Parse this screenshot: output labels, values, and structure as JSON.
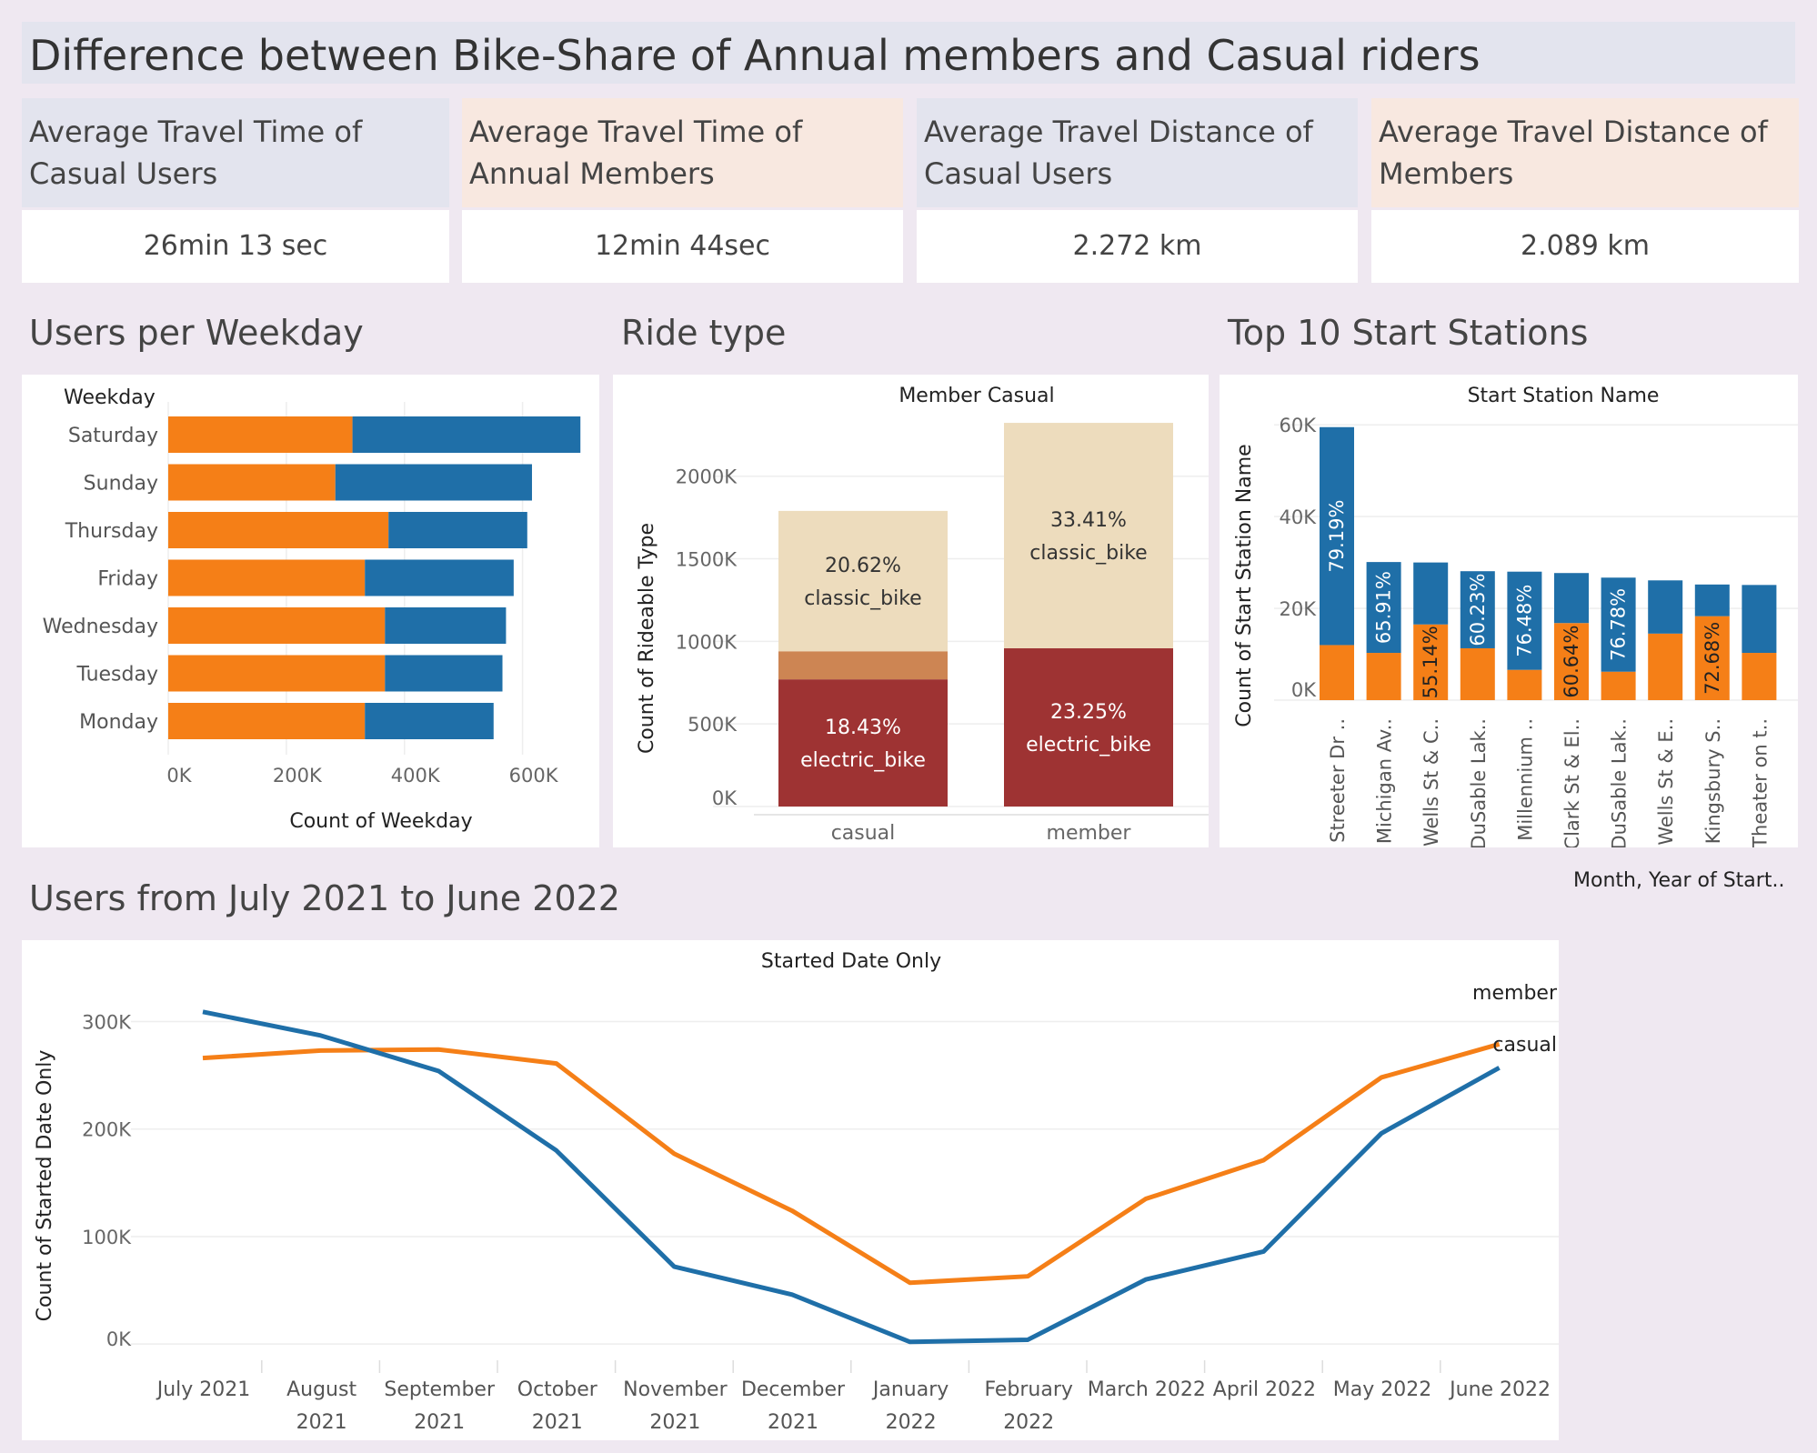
{
  "title": "Difference between Bike-Share of Annual members and Casual riders",
  "kpis": [
    {
      "label": "Average Travel Time of Casual Users",
      "value": "26min 13 sec",
      "color": "#e3e4ee"
    },
    {
      "label": "Average Travel Time of Annual Members",
      "value": "12min 44sec",
      "color": "#f8e8e0"
    },
    {
      "label": "Average Travel Distance of Casual Users",
      "value": "2.272 km",
      "color": "#e3e4ee"
    },
    {
      "label": "Average Travel Distance of Members",
      "value": "2.089 km",
      "color": "#f8e8e0"
    }
  ],
  "sections": {
    "weekday": "Users per Weekday",
    "ride_type": "Ride type",
    "stations": "Top 10 Start Stations",
    "monthly": "Users from July 2021 to June 2022"
  },
  "colors": {
    "orange": "#f57f17",
    "blue": "#1f6fa8",
    "classic": "#eddcbd",
    "electric": "#9e3333",
    "docked": "#cd8553"
  },
  "chart_data": [
    {
      "type": "bar",
      "orientation": "horizontal",
      "stacked": true,
      "header": "Weekday",
      "xlabel": "Count of Weekday",
      "categories": [
        "Saturday",
        "Sunday",
        "Thursday",
        "Friday",
        "Wednesday",
        "Tuesday",
        "Monday"
      ],
      "series": [
        {
          "values": [
            312000,
            283000,
            373000,
            333000,
            367000,
            367000,
            333000
          ]
        },
        {
          "values": [
            386000,
            333000,
            235000,
            252000,
            205000,
            199000,
            218000
          ]
        }
      ],
      "xticks": [
        "0K",
        "200K",
        "400K",
        "600K"
      ],
      "xlim": [
        0,
        730000
      ]
    },
    {
      "type": "bar",
      "stacked": true,
      "header": "Member Casual",
      "ylabel": "Count of Rideable Type",
      "categories": [
        "casual",
        "member"
      ],
      "series": [
        {
          "name": "electric_bike",
          "values": [
            770000,
            958000
          ],
          "labels": [
            "18.43%",
            "23.25%"
          ]
        },
        {
          "values": [
            170000,
            0
          ]
        },
        {
          "name": "classic_bike",
          "values": [
            850000,
            1365000
          ],
          "labels": [
            "20.62%",
            "33.41%"
          ]
        }
      ],
      "yticks": [
        "0K",
        "500K",
        "1000K",
        "1500K",
        "2000K"
      ],
      "ylim": [
        0,
        2450000
      ]
    },
    {
      "type": "bar",
      "stacked": true,
      "header": "Start Station Name",
      "ylabel": "Count of Start Station Name",
      "categories": [
        "Streeter Dr ..",
        "Michigan Av..",
        "Wells St & C..",
        "DuSable Lak..",
        "Millennium ..",
        "Clark St & El..",
        "DuSable Lak..",
        "Wells St & E..",
        "Kingsbury S..",
        "Theater on t.."
      ],
      "series": [
        {
          "values": [
            12000,
            10300,
            16500,
            11300,
            6600,
            16800,
            6200,
            14500,
            18300,
            10300
          ]
        },
        {
          "values": [
            47500,
            19800,
            13500,
            16800,
            21400,
            10900,
            20500,
            11600,
            6900,
            14800
          ]
        }
      ],
      "bar_labels": [
        "79.19%",
        "65.91%",
        "55.14%",
        "60.23%",
        "76.48%",
        "60.64%",
        "76.78%",
        "",
        "72.68%",
        ""
      ],
      "yticks": [
        "0K",
        "20K",
        "40K",
        "60K"
      ],
      "ylim": [
        0,
        65000
      ]
    },
    {
      "type": "line",
      "header": "Started Date Only",
      "ylabel": "Count of Started Date Only",
      "legend_title": "Month, Year of Start..",
      "x": [
        "July 2021",
        "August 2021",
        "September 2021",
        "October 2021",
        "November 2021",
        "December 2021",
        "January 2022",
        "February 2022",
        "March 2022",
        "April 2022",
        "May 2022",
        "June 2022"
      ],
      "series": [
        {
          "name": "member",
          "values": [
            266000,
            273000,
            274000,
            261000,
            177000,
            124000,
            57000,
            63000,
            135000,
            171000,
            248000,
            279000
          ]
        },
        {
          "name": "casual",
          "values": [
            309000,
            287000,
            254000,
            180000,
            72000,
            46000,
            2000,
            4000,
            60000,
            86000,
            196000,
            257000
          ]
        }
      ],
      "yticks": [
        "0K",
        "100K",
        "200K",
        "300K"
      ],
      "ylim": [
        -10000,
        330000
      ]
    }
  ]
}
